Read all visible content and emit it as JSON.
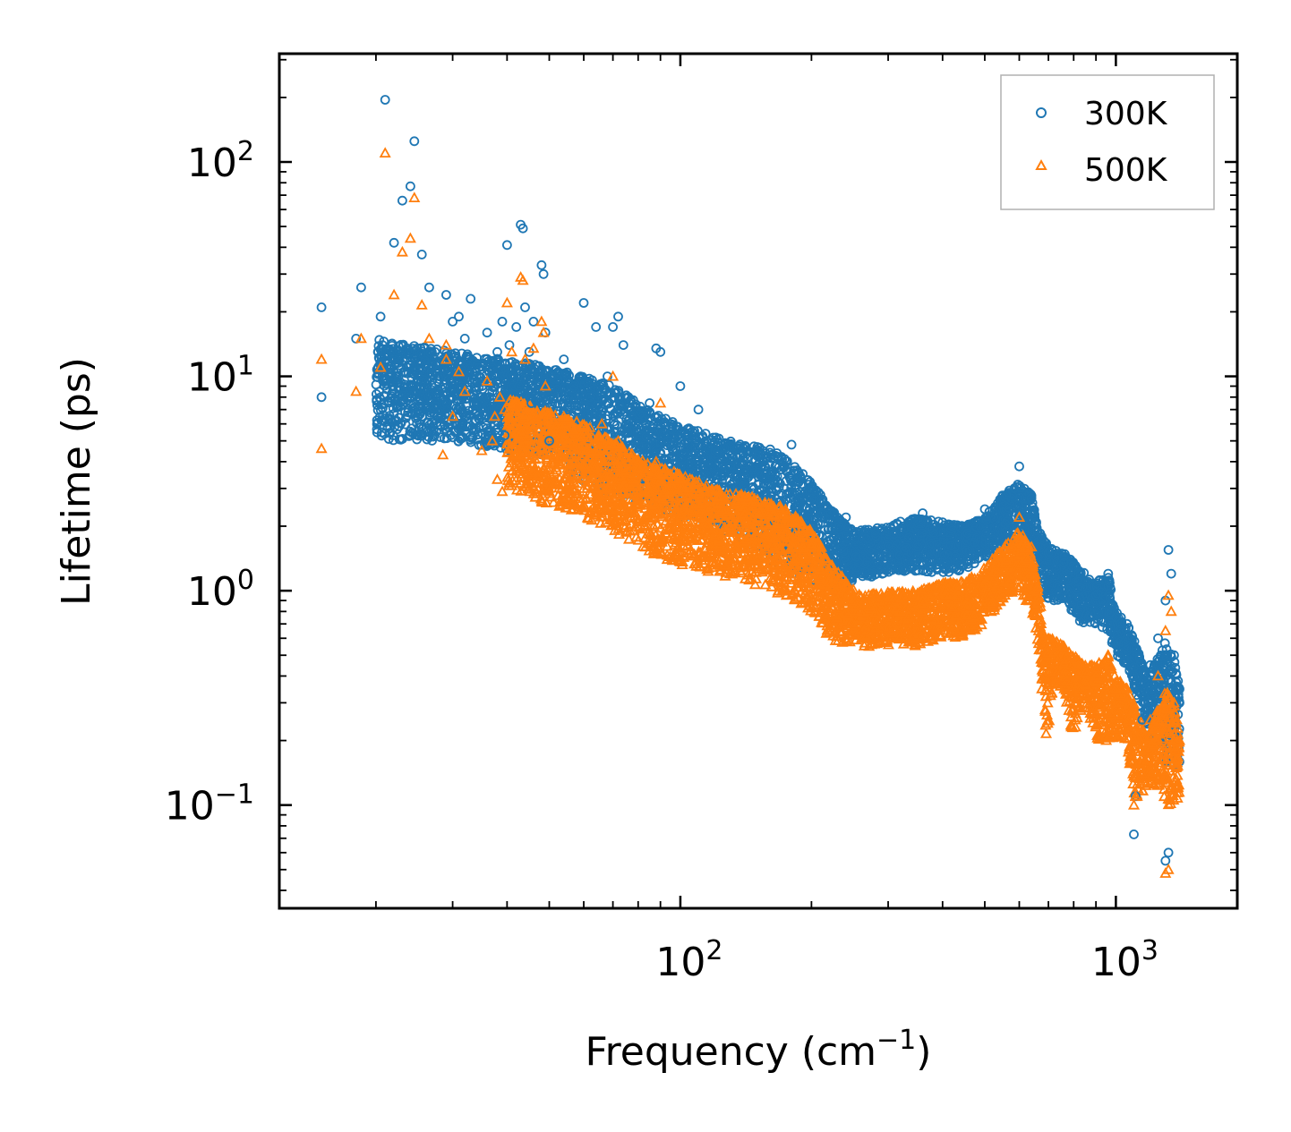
{
  "chart_data": {
    "type": "scatter",
    "title": "",
    "xlabel": "Frequency (cm",
    "xlabel_sup": "−1",
    "xlabel_end": ")",
    "ylabel": "Lifetime (ps)",
    "xscale": "log",
    "yscale": "log",
    "xlim": [
      12,
      1900
    ],
    "ylim": [
      0.033,
      320
    ],
    "x_ticks": [
      {
        "value": 100,
        "base": "10",
        "exp": "2"
      },
      {
        "value": 1000,
        "base": "10",
        "exp": "3"
      }
    ],
    "y_ticks": [
      {
        "value": 0.1,
        "base": "10",
        "exp": "−1"
      },
      {
        "value": 1,
        "base": "10",
        "exp": "0"
      },
      {
        "value": 10,
        "base": "10",
        "exp": "1"
      },
      {
        "value": 100,
        "base": "10",
        "exp": "2"
      }
    ],
    "legend": {
      "position": "top-right"
    },
    "series": [
      {
        "name": "300K",
        "marker": "circle",
        "color": "#1f77b4",
        "points": [
          [
            15,
            21
          ],
          [
            15,
            8
          ],
          [
            18,
            15
          ],
          [
            18.5,
            26
          ],
          [
            20.5,
            19
          ],
          [
            21,
            195
          ],
          [
            22,
            42
          ],
          [
            23,
            66
          ],
          [
            24,
            77
          ],
          [
            24.5,
            125
          ],
          [
            25.5,
            37
          ],
          [
            26.5,
            26
          ],
          [
            28.5,
            12
          ],
          [
            29,
            7.5
          ],
          [
            29,
            24
          ],
          [
            30,
            18
          ],
          [
            31,
            19
          ],
          [
            32,
            15
          ],
          [
            33,
            23
          ],
          [
            35,
            8
          ],
          [
            36,
            16
          ],
          [
            37,
            11
          ],
          [
            37.5,
            9
          ],
          [
            38,
            13
          ],
          [
            38.5,
            7
          ],
          [
            39,
            18
          ],
          [
            39.5,
            5.3
          ],
          [
            40,
            41
          ],
          [
            40.5,
            14
          ],
          [
            41,
            11
          ],
          [
            42,
            17
          ],
          [
            42.5,
            9
          ],
          [
            43,
            51
          ],
          [
            43.5,
            49
          ],
          [
            44,
            21
          ],
          [
            45,
            13
          ],
          [
            45.5,
            7.5
          ],
          [
            46,
            18
          ],
          [
            47,
            8
          ],
          [
            48,
            33
          ],
          [
            48.5,
            30
          ],
          [
            49,
            16
          ],
          [
            50,
            5
          ],
          [
            50.5,
            10
          ],
          [
            52,
            8
          ],
          [
            54,
            12
          ],
          [
            55,
            7
          ],
          [
            57,
            9
          ],
          [
            59,
            10
          ],
          [
            60,
            22
          ],
          [
            62,
            8
          ],
          [
            64,
            17
          ],
          [
            66,
            6
          ],
          [
            68,
            10
          ],
          [
            70,
            17
          ],
          [
            72,
            19
          ],
          [
            74,
            14
          ],
          [
            76,
            8
          ],
          [
            80,
            6
          ],
          [
            85,
            7.5
          ],
          [
            88,
            13.5
          ],
          [
            90,
            13
          ],
          [
            95,
            6
          ],
          [
            100,
            9
          ],
          [
            110,
            7
          ],
          [
            115,
            5
          ],
          [
            120,
            4.5
          ],
          [
            140,
            3.6
          ],
          [
            180,
            4.8
          ],
          [
            200,
            2.7
          ],
          [
            240,
            2.2
          ],
          [
            280,
            1.9
          ],
          [
            320,
            2.1
          ],
          [
            360,
            2.3
          ],
          [
            420,
            2.0
          ],
          [
            500,
            2.4
          ],
          [
            560,
            2.8
          ],
          [
            600,
            3.8
          ],
          [
            640,
            2.7
          ],
          [
            700,
            1.5
          ],
          [
            760,
            1.35
          ],
          [
            820,
            1.1
          ],
          [
            900,
            0.95
          ],
          [
            960,
            1.2
          ],
          [
            1000,
            0.75
          ],
          [
            1060,
            0.7
          ],
          [
            1100,
            0.4
          ],
          [
            1150,
            0.25
          ],
          [
            1200,
            0.45
          ],
          [
            1250,
            0.6
          ],
          [
            1300,
            0.9
          ],
          [
            1320,
            1.55
          ],
          [
            1340,
            1.2
          ],
          [
            1360,
            0.5
          ],
          [
            1380,
            0.35
          ],
          [
            1400,
            0.3
          ],
          [
            1100,
            0.073
          ],
          [
            1110,
            0.11
          ],
          [
            1300,
            0.055
          ],
          [
            1320,
            0.06
          ]
        ],
        "band": [
          [
            20,
            5,
            15
          ],
          [
            30,
            5,
            13
          ],
          [
            40,
            4.5,
            12
          ],
          [
            50,
            4,
            11
          ],
          [
            60,
            3.2,
            10
          ],
          [
            70,
            2.8,
            9
          ],
          [
            80,
            2.5,
            7.5
          ],
          [
            90,
            2.4,
            6.5
          ],
          [
            100,
            2.2,
            6
          ],
          [
            120,
            2,
            5.2
          ],
          [
            140,
            1.7,
            4.8
          ],
          [
            160,
            1.4,
            4.6
          ],
          [
            180,
            1.2,
            4
          ],
          [
            200,
            1.1,
            3.2
          ],
          [
            230,
            1.0,
            2.2
          ],
          [
            250,
            1.1,
            1.9
          ],
          [
            300,
            1.2,
            2.0
          ],
          [
            350,
            1.2,
            2.2
          ],
          [
            400,
            1.2,
            2.1
          ],
          [
            450,
            1.25,
            2.0
          ],
          [
            500,
            1.4,
            2.2
          ],
          [
            550,
            1.6,
            2.8
          ],
          [
            600,
            1.8,
            3.2
          ],
          [
            640,
            1.5,
            2.8
          ],
          [
            660,
            1.2,
            2.0
          ],
          [
            700,
            0.9,
            1.6
          ],
          [
            760,
            0.9,
            1.5
          ],
          [
            820,
            0.7,
            1.3
          ],
          [
            900,
            0.7,
            1.1
          ],
          [
            960,
            0.6,
            1.2
          ],
          [
            1000,
            0.5,
            0.8
          ],
          [
            1060,
            0.45,
            0.7
          ],
          [
            1100,
            0.35,
            0.6
          ],
          [
            1180,
            0.2,
            0.4
          ],
          [
            1260,
            0.2,
            0.5
          ],
          [
            1300,
            0.15,
            0.6
          ],
          [
            1360,
            0.15,
            0.5
          ],
          [
            1400,
            0.15,
            0.35
          ]
        ]
      },
      {
        "name": "500K",
        "marker": "triangle",
        "color": "#ff7f0e",
        "points": [
          [
            15,
            12
          ],
          [
            15,
            4.6
          ],
          [
            18,
            8.5
          ],
          [
            18.5,
            15
          ],
          [
            20.5,
            11
          ],
          [
            21,
            110
          ],
          [
            22,
            24
          ],
          [
            23,
            38
          ],
          [
            24,
            44
          ],
          [
            24.5,
            68
          ],
          [
            25.5,
            21.5
          ],
          [
            26.5,
            15
          ],
          [
            28.5,
            4.3
          ],
          [
            29,
            14
          ],
          [
            29,
            12
          ],
          [
            30,
            6.5
          ],
          [
            31,
            10.5
          ],
          [
            32,
            8.5
          ],
          [
            35,
            4.5
          ],
          [
            36,
            9.5
          ],
          [
            37,
            5
          ],
          [
            37.5,
            6.5
          ],
          [
            38,
            3.3
          ],
          [
            38.5,
            8
          ],
          [
            39,
            2.9
          ],
          [
            39.5,
            7
          ],
          [
            40,
            22
          ],
          [
            40.5,
            6
          ],
          [
            41,
            13
          ],
          [
            42,
            4.3
          ],
          [
            43,
            29
          ],
          [
            43.5,
            28
          ],
          [
            44,
            12
          ],
          [
            45,
            4.5
          ],
          [
            46,
            13.5
          ],
          [
            47,
            4.5
          ],
          [
            48,
            18
          ],
          [
            48.5,
            16
          ],
          [
            49,
            9
          ],
          [
            50,
            2.9
          ],
          [
            52,
            4.5
          ],
          [
            54,
            6.5
          ],
          [
            55,
            3.5
          ],
          [
            57,
            3.2
          ],
          [
            59,
            5
          ],
          [
            60,
            3
          ],
          [
            62,
            4.5
          ],
          [
            64,
            2.4
          ],
          [
            66,
            6
          ],
          [
            68,
            3
          ],
          [
            70,
            10
          ],
          [
            72,
            5
          ],
          [
            74,
            2.1
          ],
          [
            76,
            4
          ],
          [
            80,
            3.5
          ],
          [
            85,
            2.8
          ],
          [
            88,
            4
          ],
          [
            90,
            7.5
          ],
          [
            95,
            3.5
          ],
          [
            100,
            2.8
          ],
          [
            110,
            2.2
          ],
          [
            120,
            1.8
          ],
          [
            140,
            1.5
          ],
          [
            180,
            2.1
          ],
          [
            200,
            1.6
          ],
          [
            240,
            0.6
          ],
          [
            280,
            0.7
          ],
          [
            320,
            0.8
          ],
          [
            360,
            0.9
          ],
          [
            420,
            0.85
          ],
          [
            500,
            1.2
          ],
          [
            560,
            1.4
          ],
          [
            600,
            2.2
          ],
          [
            640,
            1.6
          ],
          [
            700,
            0.6
          ],
          [
            760,
            0.55
          ],
          [
            820,
            0.45
          ],
          [
            900,
            0.4
          ],
          [
            960,
            0.5
          ],
          [
            1000,
            0.35
          ],
          [
            1060,
            0.35
          ],
          [
            1100,
            0.2
          ],
          [
            1150,
            0.14
          ],
          [
            1200,
            0.25
          ],
          [
            1250,
            0.4
          ],
          [
            1300,
            0.65
          ],
          [
            1320,
            0.95
          ],
          [
            1340,
            0.8
          ],
          [
            1360,
            0.3
          ],
          [
            1380,
            0.25
          ],
          [
            1400,
            0.2
          ],
          [
            1100,
            0.1
          ],
          [
            1110,
            0.11
          ],
          [
            1300,
            0.048
          ],
          [
            1320,
            0.05
          ]
        ],
        "band": [
          [
            40,
            3,
            8
          ],
          [
            50,
            2.5,
            7
          ],
          [
            60,
            2.2,
            6
          ],
          [
            70,
            1.9,
            5
          ],
          [
            80,
            1.6,
            4.2
          ],
          [
            90,
            1.4,
            3.8
          ],
          [
            100,
            1.3,
            3.5
          ],
          [
            120,
            1.2,
            3.0
          ],
          [
            140,
            1.1,
            2.8
          ],
          [
            160,
            1.0,
            2.6
          ],
          [
            180,
            0.9,
            2.4
          ],
          [
            200,
            0.75,
            1.9
          ],
          [
            220,
            0.6,
            1.4
          ],
          [
            240,
            0.55,
            1.1
          ],
          [
            260,
            0.55,
            0.95
          ],
          [
            300,
            0.55,
            1.0
          ],
          [
            350,
            0.55,
            1.0
          ],
          [
            400,
            0.6,
            1.1
          ],
          [
            450,
            0.6,
            1.1
          ],
          [
            500,
            0.7,
            1.3
          ],
          [
            550,
            0.9,
            1.6
          ],
          [
            600,
            1.0,
            1.9
          ],
          [
            640,
            0.8,
            1.6
          ],
          [
            660,
            0.6,
            1.1
          ],
          [
            690,
            0.18,
            0.6
          ],
          [
            720,
            0.35,
            0.6
          ],
          [
            760,
            0.35,
            0.55
          ],
          [
            800,
            0.2,
            0.5
          ],
          [
            850,
            0.3,
            0.45
          ],
          [
            900,
            0.2,
            0.45
          ],
          [
            960,
            0.2,
            0.5
          ],
          [
            1000,
            0.2,
            0.4
          ],
          [
            1060,
            0.2,
            0.35
          ],
          [
            1100,
            0.1,
            0.3
          ],
          [
            1180,
            0.12,
            0.2
          ],
          [
            1260,
            0.12,
            0.3
          ],
          [
            1300,
            0.1,
            0.35
          ],
          [
            1360,
            0.1,
            0.3
          ],
          [
            1400,
            0.1,
            0.2
          ]
        ]
      }
    ]
  }
}
